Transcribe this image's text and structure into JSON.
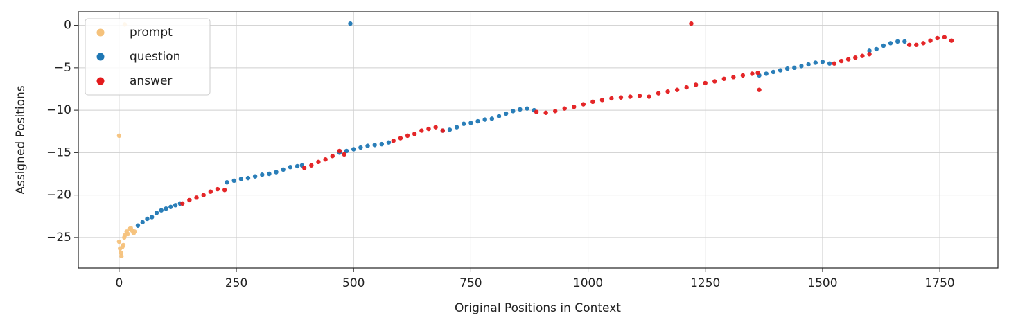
{
  "chart_data": {
    "type": "scatter",
    "xlabel": "Original Positions in Context",
    "ylabel": "Assigned Positions",
    "xlim": [
      -87,
      1874
    ],
    "ylim": [
      -28.6,
      1.6
    ],
    "xticks": [
      0,
      250,
      500,
      750,
      1000,
      1250,
      1500,
      1750
    ],
    "yticks": [
      {
        "value": -25,
        "label": "−25"
      },
      {
        "value": -20,
        "label": "−20"
      },
      {
        "value": -15,
        "label": "−15"
      },
      {
        "value": -10,
        "label": "−10"
      },
      {
        "value": -5,
        "label": "−5"
      },
      0
    ],
    "grid": true,
    "legend": "upper left",
    "series": [
      {
        "name": "prompt",
        "color": "#f5c27c",
        "x": [
          0,
          2,
          4,
          5,
          7,
          9,
          11,
          13,
          16,
          19,
          22,
          25,
          28,
          31,
          33,
          0,
          12
        ],
        "values": [
          -25.5,
          -26.3,
          -26.8,
          -27.2,
          -26.1,
          -25.9,
          -25.0,
          -24.7,
          -24.3,
          -24.6,
          -24.0,
          -23.9,
          -24.2,
          -24.5,
          -24.3,
          -13.0,
          0.1
        ]
      },
      {
        "name": "question",
        "color": "#1f77b4",
        "x": [
          40,
          50,
          60,
          70,
          80,
          90,
          100,
          110,
          120,
          130,
          230,
          245,
          260,
          275,
          290,
          305,
          320,
          335,
          350,
          365,
          380,
          390,
          470,
          485,
          500,
          515,
          530,
          545,
          560,
          575,
          690,
          705,
          720,
          735,
          750,
          765,
          780,
          795,
          810,
          825,
          840,
          855,
          870,
          885,
          1365,
          1380,
          1395,
          1410,
          1425,
          1440,
          1455,
          1470,
          1485,
          1500,
          1515,
          1600,
          1615,
          1630,
          1645,
          1660,
          1675,
          493
        ],
        "values": [
          -23.6,
          -23.2,
          -22.8,
          -22.6,
          -22.1,
          -21.8,
          -21.6,
          -21.4,
          -21.2,
          -21.0,
          -18.5,
          -18.3,
          -18.1,
          -18.0,
          -17.8,
          -17.6,
          -17.5,
          -17.3,
          -17.0,
          -16.7,
          -16.6,
          -16.5,
          -15.0,
          -14.8,
          -14.6,
          -14.4,
          -14.2,
          -14.1,
          -14.0,
          -13.8,
          -12.4,
          -12.3,
          -12.0,
          -11.6,
          -11.5,
          -11.3,
          -11.1,
          -11.0,
          -10.7,
          -10.4,
          -10.1,
          -9.9,
          -9.8,
          -10.0,
          -5.9,
          -5.7,
          -5.5,
          -5.3,
          -5.1,
          -5.0,
          -4.8,
          -4.6,
          -4.4,
          -4.3,
          -4.5,
          -3.0,
          -2.8,
          -2.4,
          -2.1,
          -1.9,
          -1.9,
          0.2
        ]
      },
      {
        "name": "answer",
        "color": "#e31a1c",
        "x": [
          135,
          150,
          165,
          180,
          195,
          210,
          225,
          395,
          410,
          425,
          440,
          455,
          470,
          480,
          585,
          600,
          615,
          630,
          645,
          660,
          675,
          690,
          890,
          910,
          930,
          950,
          970,
          990,
          1010,
          1030,
          1050,
          1070,
          1090,
          1110,
          1130,
          1150,
          1170,
          1190,
          1210,
          1230,
          1250,
          1270,
          1290,
          1310,
          1330,
          1350,
          1362,
          1525,
          1540,
          1555,
          1570,
          1585,
          1600,
          1685,
          1700,
          1715,
          1730,
          1745,
          1760,
          1775,
          1220,
          1365
        ],
        "values": [
          -21.0,
          -20.6,
          -20.3,
          -20.0,
          -19.6,
          -19.3,
          -19.4,
          -16.8,
          -16.5,
          -16.1,
          -15.8,
          -15.4,
          -14.8,
          -15.2,
          -13.6,
          -13.3,
          -13.0,
          -12.8,
          -12.4,
          -12.2,
          -12.0,
          -12.4,
          -10.2,
          -10.3,
          -10.1,
          -9.8,
          -9.6,
          -9.3,
          -9.0,
          -8.8,
          -8.6,
          -8.5,
          -8.4,
          -8.3,
          -8.4,
          -8.0,
          -7.8,
          -7.6,
          -7.3,
          -7.0,
          -6.8,
          -6.6,
          -6.3,
          -6.1,
          -5.9,
          -5.7,
          -5.6,
          -4.5,
          -4.2,
          -4.0,
          -3.8,
          -3.6,
          -3.4,
          -2.3,
          -2.3,
          -2.1,
          -1.8,
          -1.5,
          -1.4,
          -1.8,
          0.2,
          -7.6
        ]
      }
    ]
  }
}
